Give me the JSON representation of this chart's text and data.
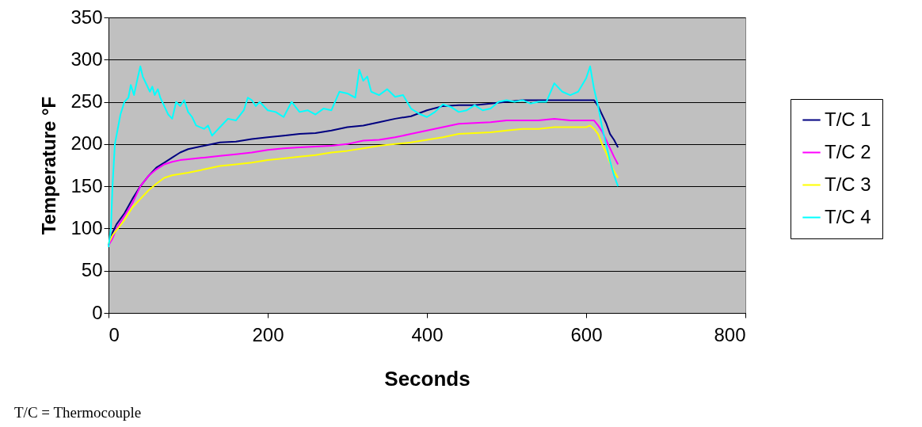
{
  "chart_data": {
    "type": "line",
    "xlabel": "Seconds",
    "ylabel": "Temperature °F",
    "xlim": [
      0,
      800
    ],
    "xticks": [
      0,
      200,
      400,
      600,
      800
    ],
    "ylim": [
      0,
      350
    ],
    "yticks": [
      0,
      50,
      100,
      150,
      200,
      250,
      300,
      350
    ],
    "grid": "y",
    "legend": "right",
    "annotations": [
      "T/C = Thermocouple"
    ],
    "series": [
      {
        "name": "T/C 1",
        "color": "#000080",
        "x": [
          0,
          5,
          10,
          20,
          30,
          40,
          50,
          60,
          70,
          80,
          90,
          100,
          120,
          140,
          160,
          180,
          200,
          220,
          240,
          260,
          280,
          300,
          320,
          340,
          360,
          380,
          400,
          420,
          440,
          460,
          480,
          500,
          520,
          540,
          560,
          580,
          600,
          610,
          615,
          620,
          625,
          630,
          635,
          640
        ],
        "values": [
          80,
          95,
          105,
          118,
          135,
          150,
          162,
          172,
          178,
          184,
          190,
          194,
          198,
          202,
          203,
          206,
          208,
          210,
          212,
          213,
          216,
          220,
          222,
          226,
          230,
          233,
          240,
          245,
          246,
          246,
          248,
          250,
          252,
          252,
          252,
          252,
          252,
          252,
          245,
          235,
          225,
          212,
          205,
          196
        ]
      },
      {
        "name": "T/C 2",
        "color": "#ff00ff",
        "x": [
          0,
          5,
          10,
          20,
          30,
          40,
          50,
          60,
          70,
          80,
          90,
          100,
          120,
          140,
          160,
          180,
          200,
          220,
          240,
          260,
          280,
          300,
          320,
          340,
          360,
          380,
          400,
          420,
          440,
          460,
          480,
          500,
          520,
          540,
          560,
          580,
          600,
          610,
          615,
          620,
          625,
          630,
          635,
          640
        ],
        "values": [
          80,
          88,
          100,
          115,
          130,
          150,
          162,
          170,
          176,
          179,
          181,
          182,
          184,
          186,
          188,
          190,
          193,
          195,
          196,
          197,
          198,
          200,
          204,
          205,
          208,
          212,
          216,
          220,
          224,
          225,
          226,
          228,
          228,
          228,
          230,
          228,
          228,
          228,
          222,
          215,
          205,
          195,
          185,
          176
        ]
      },
      {
        "name": "T/C 3",
        "color": "#ffff00",
        "x": [
          0,
          5,
          10,
          20,
          30,
          40,
          50,
          60,
          70,
          80,
          100,
          120,
          140,
          160,
          180,
          200,
          220,
          240,
          260,
          280,
          300,
          320,
          340,
          360,
          380,
          400,
          420,
          440,
          460,
          480,
          500,
          520,
          540,
          560,
          580,
          600,
          605,
          610,
          615,
          620,
          625,
          630,
          635,
          640
        ],
        "values": [
          82,
          92,
          98,
          110,
          125,
          135,
          145,
          153,
          160,
          163,
          166,
          170,
          174,
          176,
          178,
          181,
          183,
          185,
          187,
          190,
          192,
          195,
          198,
          200,
          202,
          205,
          208,
          212,
          213,
          214,
          216,
          218,
          218,
          220,
          220,
          220,
          222,
          218,
          212,
          200,
          190,
          178,
          168,
          160
        ]
      },
      {
        "name": "T/C 4",
        "color": "#00ffff",
        "x": [
          0,
          3,
          5,
          8,
          12,
          15,
          20,
          25,
          28,
          32,
          37,
          40,
          43,
          48,
          52,
          55,
          58,
          62,
          65,
          70,
          75,
          80,
          85,
          90,
          95,
          100,
          105,
          110,
          120,
          125,
          130,
          135,
          140,
          145,
          150,
          160,
          170,
          175,
          180,
          185,
          190,
          200,
          210,
          220,
          230,
          240,
          250,
          260,
          270,
          280,
          290,
          300,
          310,
          315,
          320,
          325,
          330,
          340,
          350,
          360,
          370,
          380,
          390,
          400,
          410,
          420,
          430,
          440,
          450,
          460,
          470,
          480,
          490,
          500,
          510,
          520,
          530,
          540,
          550,
          560,
          570,
          580,
          590,
          600,
          605,
          610,
          615,
          620,
          625,
          630,
          635,
          640
        ],
        "values": [
          78,
          100,
          150,
          200,
          220,
          235,
          250,
          255,
          270,
          258,
          280,
          292,
          280,
          270,
          262,
          268,
          258,
          265,
          255,
          245,
          235,
          230,
          250,
          245,
          252,
          238,
          232,
          222,
          218,
          222,
          210,
          215,
          220,
          225,
          230,
          228,
          240,
          255,
          252,
          245,
          250,
          240,
          238,
          232,
          250,
          238,
          240,
          235,
          242,
          240,
          262,
          260,
          255,
          288,
          275,
          280,
          262,
          258,
          265,
          256,
          258,
          242,
          236,
          232,
          238,
          247,
          244,
          238,
          240,
          246,
          240,
          242,
          250,
          252,
          250,
          252,
          248,
          250,
          250,
          272,
          262,
          258,
          262,
          278,
          292,
          265,
          245,
          220,
          200,
          180,
          163,
          150
        ]
      }
    ]
  }
}
